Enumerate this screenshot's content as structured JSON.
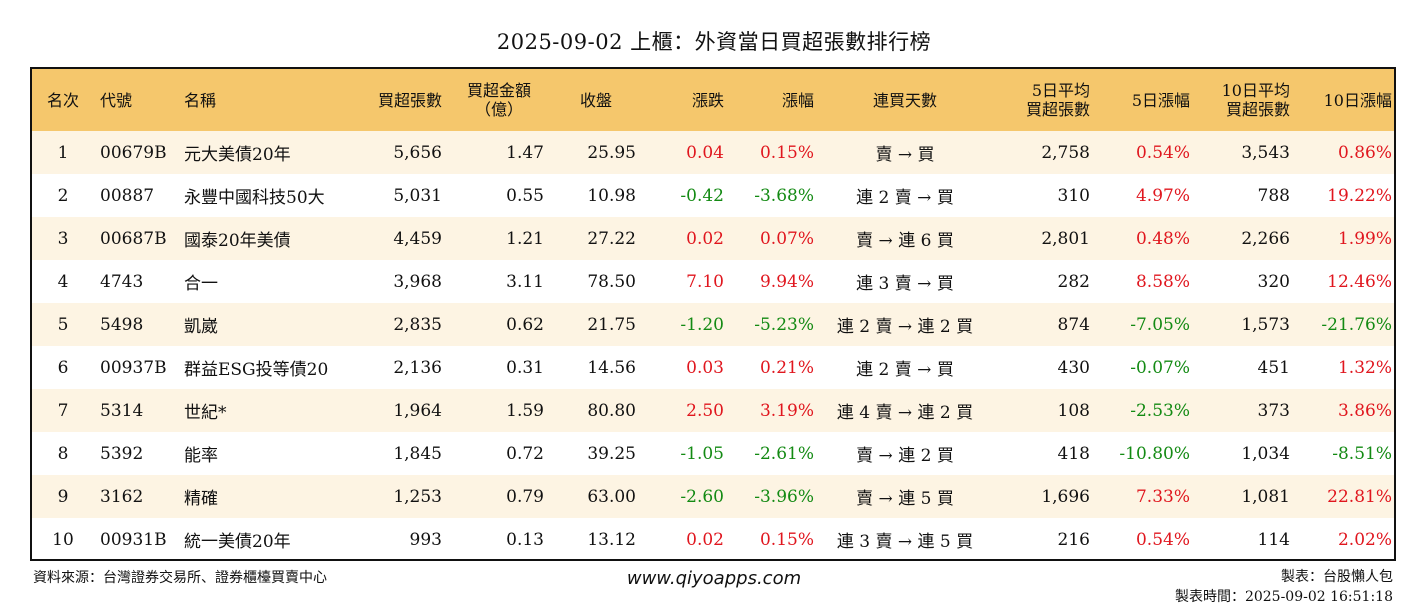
{
  "title": "2025-09-02 上櫃：外資當日買超張數排行榜",
  "headers": {
    "rank": "名次",
    "code": "代號",
    "name": "名稱",
    "buy_lots": "買超張數",
    "buy_amount_1": "買超金額",
    "buy_amount_2": "（億）",
    "close": "收盤",
    "change": "漲跌",
    "change_pct": "漲幅",
    "streak": "連買天數",
    "avg5_1": "5日平均",
    "avg5_2": "買超張數",
    "pct5": "5日漲幅",
    "avg10_1": "10日平均",
    "avg10_2": "買超張數",
    "pct10": "10日漲幅"
  },
  "rows": [
    {
      "rank": "1",
      "code": "00679B",
      "name": "元大美債20年",
      "lots": "5,656",
      "amount": "1.47",
      "close": "25.95",
      "change": "0.04",
      "change_pct": "0.15%",
      "streak": "賣 → 買",
      "avg5": "2,758",
      "pct5": "0.54%",
      "avg10": "3,543",
      "pct10": "0.86%"
    },
    {
      "rank": "2",
      "code": "00887",
      "name": "永豐中國科技50大",
      "lots": "5,031",
      "amount": "0.55",
      "close": "10.98",
      "change": "-0.42",
      "change_pct": "-3.68%",
      "streak": "連 2 賣 → 買",
      "avg5": "310",
      "pct5": "4.97%",
      "avg10": "788",
      "pct10": "19.22%"
    },
    {
      "rank": "3",
      "code": "00687B",
      "name": "國泰20年美債",
      "lots": "4,459",
      "amount": "1.21",
      "close": "27.22",
      "change": "0.02",
      "change_pct": "0.07%",
      "streak": "賣 → 連 6 買",
      "avg5": "2,801",
      "pct5": "0.48%",
      "avg10": "2,266",
      "pct10": "1.99%"
    },
    {
      "rank": "4",
      "code": "4743",
      "name": "合一",
      "lots": "3,968",
      "amount": "3.11",
      "close": "78.50",
      "change": "7.10",
      "change_pct": "9.94%",
      "streak": "連 3 賣 → 買",
      "avg5": "282",
      "pct5": "8.58%",
      "avg10": "320",
      "pct10": "12.46%"
    },
    {
      "rank": "5",
      "code": "5498",
      "name": "凱崴",
      "lots": "2,835",
      "amount": "0.62",
      "close": "21.75",
      "change": "-1.20",
      "change_pct": "-5.23%",
      "streak": "連 2 賣 → 連 2 買",
      "avg5": "874",
      "pct5": "-7.05%",
      "avg10": "1,573",
      "pct10": "-21.76%"
    },
    {
      "rank": "6",
      "code": "00937B",
      "name": "群益ESG投等債20",
      "lots": "2,136",
      "amount": "0.31",
      "close": "14.56",
      "change": "0.03",
      "change_pct": "0.21%",
      "streak": "連 2 賣 → 買",
      "avg5": "430",
      "pct5": "-0.07%",
      "avg10": "451",
      "pct10": "1.32%"
    },
    {
      "rank": "7",
      "code": "5314",
      "name": "世紀*",
      "lots": "1,964",
      "amount": "1.59",
      "close": "80.80",
      "change": "2.50",
      "change_pct": "3.19%",
      "streak": "連 4 賣 → 連 2 買",
      "avg5": "108",
      "pct5": "-2.53%",
      "avg10": "373",
      "pct10": "3.86%"
    },
    {
      "rank": "8",
      "code": "5392",
      "name": "能率",
      "lots": "1,845",
      "amount": "0.72",
      "close": "39.25",
      "change": "-1.05",
      "change_pct": "-2.61%",
      "streak": "賣 → 連 2 買",
      "avg5": "418",
      "pct5": "-10.80%",
      "avg10": "1,034",
      "pct10": "-8.51%"
    },
    {
      "rank": "9",
      "code": "3162",
      "name": "精確",
      "lots": "1,253",
      "amount": "0.79",
      "close": "63.00",
      "change": "-2.60",
      "change_pct": "-3.96%",
      "streak": "賣 → 連 5 買",
      "avg5": "1,696",
      "pct5": "7.33%",
      "avg10": "1,081",
      "pct10": "22.81%"
    },
    {
      "rank": "10",
      "code": "00931B",
      "name": "統一美債20年",
      "lots": "993",
      "amount": "0.13",
      "close": "13.12",
      "change": "0.02",
      "change_pct": "0.15%",
      "streak": "連 3 賣 → 連 5 買",
      "avg5": "216",
      "pct5": "0.54%",
      "avg10": "114",
      "pct10": "2.02%"
    }
  ],
  "footer": {
    "source": "資料來源：台灣證券交易所、證券櫃檯買賣中心",
    "website": "www.qiyoapps.com",
    "maker": "製表：台股懶人包",
    "made_time": "製表時間：2025-09-02 16:51:18"
  },
  "colors": {
    "header_bg": "#f5c76c",
    "row_alt_bg": "#fdf4e3",
    "positive": "#e0161e",
    "negative": "#138a13"
  }
}
